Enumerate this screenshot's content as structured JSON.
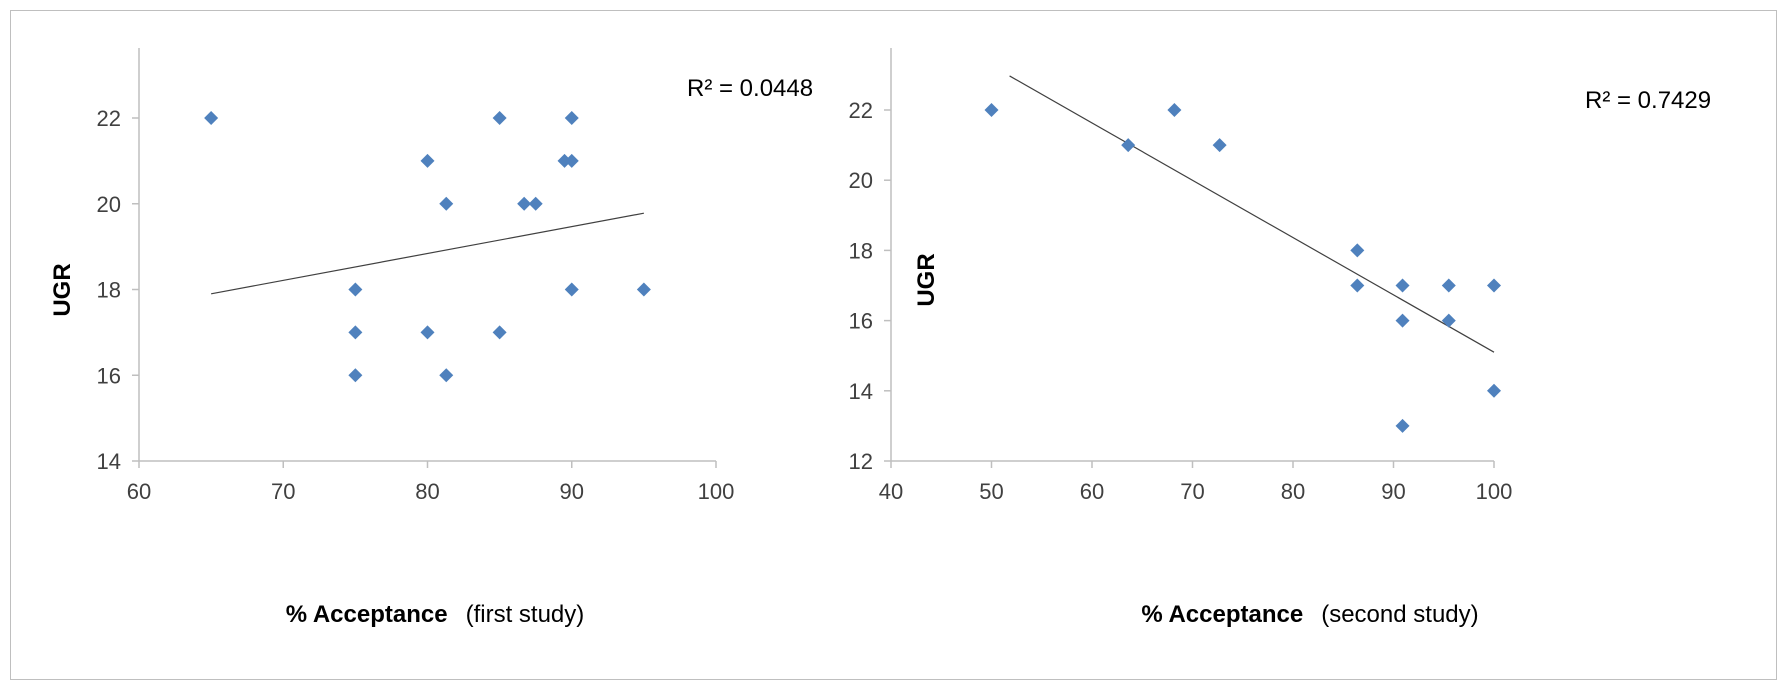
{
  "chart_data": [
    {
      "type": "scatter",
      "ylabel": "UGR",
      "xlabel_bold": "% Acceptance",
      "xlabel_normal": "(first study)",
      "xlim": [
        60,
        100
      ],
      "ylim": [
        14,
        22
      ],
      "xticks": [
        60,
        70,
        80,
        90,
        100
      ],
      "yticks": [
        14,
        16,
        18,
        20,
        22
      ],
      "marker_color": "#4f81bd",
      "points": [
        {
          "x": 65,
          "y": 22
        },
        {
          "x": 85,
          "y": 22
        },
        {
          "x": 90,
          "y": 22
        },
        {
          "x": 80,
          "y": 21
        },
        {
          "x": 89.5,
          "y": 21
        },
        {
          "x": 90,
          "y": 21
        },
        {
          "x": 81.3,
          "y": 20
        },
        {
          "x": 86.7,
          "y": 20
        },
        {
          "x": 87.5,
          "y": 20
        },
        {
          "x": 75,
          "y": 18
        },
        {
          "x": 90,
          "y": 18
        },
        {
          "x": 95,
          "y": 18
        },
        {
          "x": 75,
          "y": 17
        },
        {
          "x": 80,
          "y": 17
        },
        {
          "x": 85,
          "y": 17
        },
        {
          "x": 75,
          "y": 16
        },
        {
          "x": 81.3,
          "y": 16
        }
      ],
      "trendline": {
        "x1": 65,
        "y1": 17.9,
        "x2": 95,
        "y2": 19.78
      },
      "r2_text": "R² = 0.0448"
    },
    {
      "type": "scatter",
      "ylabel": "UGR",
      "xlabel_bold": "% Acceptance",
      "xlabel_normal": "(second study)",
      "xlim": [
        40,
        100
      ],
      "ylim": [
        12,
        22
      ],
      "xticks": [
        40,
        50,
        60,
        70,
        80,
        90,
        100
      ],
      "yticks": [
        12,
        14,
        16,
        18,
        20,
        22
      ],
      "marker_color": "#4f81bd",
      "points": [
        {
          "x": 50,
          "y": 22
        },
        {
          "x": 68.2,
          "y": 22
        },
        {
          "x": 63.6,
          "y": 21
        },
        {
          "x": 72.7,
          "y": 21
        },
        {
          "x": 86.4,
          "y": 18
        },
        {
          "x": 86.4,
          "y": 17
        },
        {
          "x": 90.9,
          "y": 17
        },
        {
          "x": 95.5,
          "y": 17
        },
        {
          "x": 100,
          "y": 17
        },
        {
          "x": 90.9,
          "y": 16
        },
        {
          "x": 95.5,
          "y": 16
        },
        {
          "x": 100,
          "y": 14
        },
        {
          "x": 90.9,
          "y": 13
        }
      ],
      "trendline": {
        "x1": 51.8,
        "y1": 22.97,
        "x2": 100,
        "y2": 15.1
      },
      "r2_text": "R² = 0.7429"
    }
  ]
}
